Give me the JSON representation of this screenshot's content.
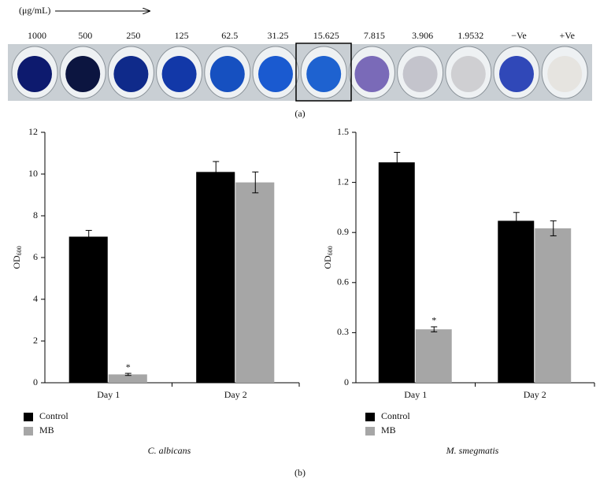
{
  "plate": {
    "unit": "(μg/mL)",
    "concentrations": [
      "1000",
      "500",
      "250",
      "125",
      "62.5",
      "31.25",
      "15.625",
      "7.815",
      "3.906",
      "1.9532",
      "−Ve",
      "+Ve"
    ]
  },
  "panel_labels": [
    "(a)",
    "(b)"
  ],
  "chart_data": [
    {
      "type": "bar",
      "title": "C. albicans",
      "ylabel": {
        "text": "OD",
        "subscript": "600"
      },
      "categories": [
        "Day 1",
        "Day 2"
      ],
      "series": [
        {
          "name": "Control",
          "color": "#000000",
          "values": [
            7.0,
            10.1
          ],
          "errors": [
            0.3,
            0.5
          ]
        },
        {
          "name": "MB",
          "color": "#a6a6a6",
          "values": [
            0.4,
            9.6
          ],
          "errors": [
            0.05,
            0.5
          ]
        }
      ],
      "annotations": [
        {
          "text": "*",
          "category": "Day 1",
          "series": "MB"
        }
      ],
      "ylim": [
        0,
        12
      ],
      "yticks": [
        0,
        2,
        4,
        6,
        8,
        10,
        12
      ],
      "legend": "bottom-left"
    },
    {
      "type": "bar",
      "title": "M. smegmatis",
      "ylabel": {
        "text": "OD",
        "subscript": "600"
      },
      "categories": [
        "Day 1",
        "Day 2"
      ],
      "series": [
        {
          "name": "Control",
          "color": "#000000",
          "values": [
            1.32,
            0.97
          ],
          "errors": [
            0.06,
            0.05
          ]
        },
        {
          "name": "MB",
          "color": "#a6a6a6",
          "values": [
            0.32,
            0.925
          ],
          "errors": [
            0.015,
            0.045
          ]
        }
      ],
      "annotations": [
        {
          "text": "*",
          "category": "Day 1",
          "series": "MB"
        }
      ],
      "ylim": [
        0,
        1.5
      ],
      "yticks": [
        0,
        0.3,
        0.6,
        0.9,
        1.2,
        1.5
      ],
      "legend": "bottom-left"
    }
  ]
}
